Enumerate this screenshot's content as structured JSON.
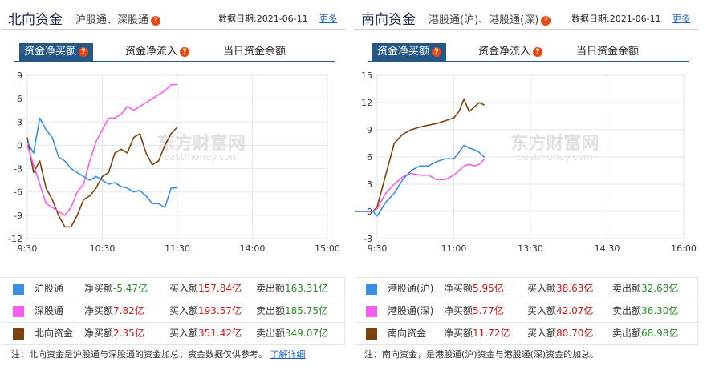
{
  "north": {
    "title": "北向资金",
    "subtitle": "沪股通、深股通",
    "date_label": "数据日期:",
    "date": "2021-06-11",
    "more": "更多",
    "tabs": [
      {
        "label": "资金净买额",
        "active": true
      },
      {
        "label": "资金净流入",
        "active": false
      },
      {
        "label": "当日资金余额",
        "active": false
      }
    ],
    "legend": [
      {
        "name": "沪股通",
        "net_label": "净买额",
        "net": "-5.47亿",
        "buy_label": "买入额",
        "buy": "157.84亿",
        "sell_label": "卖出额",
        "sell": "163.31亿",
        "color": "#3a8ee6"
      },
      {
        "name": "深股通",
        "net_label": "净买额",
        "net": "7.82亿",
        "buy_label": "买入额",
        "buy": "193.57亿",
        "sell_label": "卖出额",
        "sell": "185.75亿",
        "color": "#f75ef0"
      },
      {
        "name": "北向资金",
        "net_label": "净买额",
        "net": "2.35亿",
        "buy_label": "买入额",
        "buy": "351.42亿",
        "sell_label": "卖出额",
        "sell": "349.07亿",
        "color": "#7b4310"
      }
    ],
    "note": "注：北向资金是沪股通与深股通的资金加总；资金数据仅供参考。",
    "note_link": "了解详细"
  },
  "south": {
    "title": "南向资金",
    "subtitle": "港股通(沪)、港股通(深)",
    "date_label": "数据日期:",
    "date": "2021-06-11",
    "more": "更多",
    "tabs": [
      {
        "label": "资金净买额",
        "active": true
      },
      {
        "label": "资金净流入",
        "active": false
      },
      {
        "label": "当日资金余额",
        "active": false
      }
    ],
    "legend": [
      {
        "name": "港股通(沪)",
        "net_label": "净买额",
        "net": "5.95亿",
        "buy_label": "买入额",
        "buy": "38.63亿",
        "sell_label": "卖出额",
        "sell": "32.68亿",
        "color": "#3a8ee6"
      },
      {
        "name": "港股通(深)",
        "net_label": "净买额",
        "net": "5.77亿",
        "buy_label": "买入额",
        "buy": "42.07亿",
        "sell_label": "卖出额",
        "sell": "36.30亿",
        "color": "#f75ef0"
      },
      {
        "name": "南向资金",
        "net_label": "净买额",
        "net": "11.72亿",
        "buy_label": "买入额",
        "buy": "80.70亿",
        "sell_label": "卖出额",
        "sell": "68.98亿",
        "color": "#7b4310"
      }
    ],
    "note": "注：南向资金，是港股通(沪)资金与港股通(深)资金的加总。"
  },
  "watermark": {
    "cn": "东方财富网",
    "en": "eastmoney.com"
  },
  "chart_data": [
    {
      "type": "line",
      "x_ticks": [
        "9:30",
        "10:30",
        "11:30",
        "14:00",
        "15:00"
      ],
      "y_ticks": [
        9,
        6,
        3,
        0,
        -3,
        -6,
        -9,
        -12
      ],
      "ylim": [
        -12,
        9
      ],
      "grid": true,
      "series": [
        {
          "name": "沪股通",
          "color": "#3a8ee6",
          "x": [
            "9:30",
            "9:35",
            "9:40",
            "9:45",
            "9:50",
            "9:55",
            "10:00",
            "10:05",
            "10:10",
            "10:15",
            "10:20",
            "10:25",
            "10:30",
            "10:35",
            "10:40",
            "10:45",
            "10:50",
            "10:55",
            "11:00",
            "11:05",
            "11:10",
            "11:15",
            "11:20",
            "11:25",
            "11:30"
          ],
          "y": [
            0.5,
            -1,
            3.5,
            2,
            1,
            -1.5,
            -2,
            -3,
            -3.5,
            -4,
            -4.5,
            -4,
            -4.5,
            -5,
            -4.8,
            -5.3,
            -5.5,
            -6,
            -5.8,
            -6.5,
            -7.5,
            -7.5,
            -8,
            -5.5,
            -5.47
          ]
        },
        {
          "name": "深股通",
          "color": "#f75ef0",
          "x": [
            "9:30",
            "9:35",
            "9:40",
            "9:45",
            "9:50",
            "9:55",
            "10:00",
            "10:05",
            "10:10",
            "10:15",
            "10:20",
            "10:25",
            "10:30",
            "10:35",
            "10:40",
            "10:45",
            "10:50",
            "10:55",
            "11:00",
            "11:05",
            "11:10",
            "11:15",
            "11:20",
            "11:25",
            "11:30"
          ],
          "y": [
            0,
            -2.5,
            -5,
            -7.5,
            -8,
            -8.5,
            -9,
            -8,
            -6,
            -5,
            -2,
            0.5,
            2,
            3.5,
            3.5,
            4,
            5,
            4.5,
            5,
            5.5,
            6,
            6.5,
            7,
            7.8,
            7.82
          ]
        },
        {
          "name": "北向资金",
          "color": "#7b4310",
          "x": [
            "9:30",
            "9:35",
            "9:40",
            "9:45",
            "9:50",
            "9:55",
            "10:00",
            "10:05",
            "10:10",
            "10:15",
            "10:20",
            "10:25",
            "10:30",
            "10:35",
            "10:40",
            "10:45",
            "10:50",
            "10:55",
            "11:00",
            "11:05",
            "11:10",
            "11:15",
            "11:20",
            "11:25",
            "11:30"
          ],
          "y": [
            1,
            -3.5,
            -2,
            -5.5,
            -7,
            -9,
            -10.5,
            -10.5,
            -9,
            -7,
            -6.5,
            -5.5,
            -4,
            -3.5,
            -1,
            -0.5,
            -1,
            1,
            1.5,
            -1,
            -2.5,
            -2,
            0,
            1.5,
            2.35
          ]
        }
      ]
    },
    {
      "type": "line",
      "x_ticks": [
        "9:30",
        "11:00",
        "13:30",
        "14:30",
        "16:00"
      ],
      "y_ticks": [
        15,
        12,
        9,
        6,
        3,
        0,
        -3
      ],
      "ylim": [
        -3,
        15
      ],
      "grid": true,
      "series": [
        {
          "name": "港股通(沪)",
          "color": "#3a8ee6",
          "x": [
            "9:00",
            "9:15",
            "9:25",
            "9:30",
            "9:40",
            "9:50",
            "10:00",
            "10:10",
            "10:20",
            "10:30",
            "10:40",
            "10:50",
            "11:00",
            "11:10",
            "11:20",
            "11:30",
            "11:40",
            "11:50",
            "12:00"
          ],
          "y": [
            0,
            0,
            0,
            -0.5,
            1,
            2,
            3.5,
            4.5,
            5,
            5,
            5.5,
            5.8,
            5.8,
            6.5,
            7.3,
            7,
            6.8,
            6.5,
            5.95
          ]
        },
        {
          "name": "港股通(深)",
          "color": "#f75ef0",
          "x": [
            "9:00",
            "9:15",
            "9:25",
            "9:30",
            "9:40",
            "9:50",
            "10:00",
            "10:10",
            "10:20",
            "10:30",
            "10:40",
            "10:50",
            "11:00",
            "11:10",
            "11:20",
            "11:30",
            "11:40",
            "11:50",
            "12:00"
          ],
          "y": [
            0,
            0,
            0,
            0.3,
            2,
            3,
            3.8,
            4.2,
            4,
            4,
            3.5,
            3.5,
            4,
            4.5,
            5,
            5.2,
            5,
            5.2,
            5.77
          ]
        },
        {
          "name": "南向资金",
          "color": "#7b4310",
          "x": [
            "9:00",
            "9:15",
            "9:25",
            "9:30",
            "9:40",
            "9:50",
            "10:00",
            "10:10",
            "10:20",
            "10:30",
            "10:40",
            "10:50",
            "11:00",
            "11:10",
            "11:20",
            "11:30",
            "11:40",
            "11:50",
            "12:00"
          ],
          "y": [
            0,
            0,
            0,
            0.5,
            4,
            7.5,
            8.5,
            9,
            9.3,
            9.5,
            9.7,
            10,
            10.3,
            11,
            12.4,
            11,
            11.5,
            12,
            11.72
          ]
        }
      ]
    }
  ]
}
